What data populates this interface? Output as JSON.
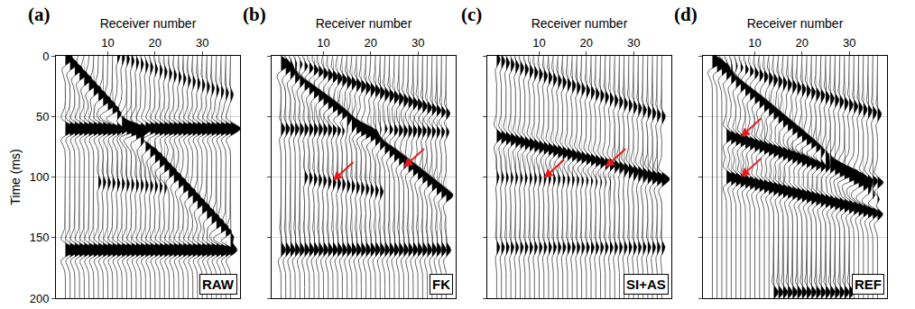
{
  "chart_data": [
    {
      "type": "wiggle",
      "panel": "(a)",
      "label": "RAW",
      "x_label": "Receiver number",
      "y_label": "Time (ms)",
      "x": [
        1,
        2,
        3,
        4,
        5,
        6,
        7,
        8,
        9,
        10,
        11,
        12,
        13,
        14,
        15,
        16,
        17,
        18,
        19,
        20,
        21,
        22,
        23,
        24,
        25,
        26,
        27,
        28,
        29,
        30,
        31,
        32,
        33,
        34,
        35,
        36
      ],
      "xlim": [
        -1,
        38
      ],
      "xticks": [
        10,
        20,
        30
      ],
      "ylim": [
        0,
        200
      ],
      "yticks": [
        0,
        50,
        100,
        150,
        200
      ],
      "tick_labels": true,
      "grid": true,
      "color": "#000000",
      "events": [
        {
          "x": [
            1,
            36
          ],
          "values": [
            2,
            150
          ],
          "amplitude": 1.0
        },
        {
          "x": [
            12,
            36
          ],
          "values": [
            0,
            32
          ],
          "amplitude": 0.35
        },
        {
          "x": [
            1,
            36
          ],
          "values": [
            60,
            60
          ],
          "amplitude": 1.3
        },
        {
          "x": [
            1,
            36
          ],
          "values": [
            160,
            160
          ],
          "amplitude": 1.3
        },
        {
          "x": [
            8,
            22
          ],
          "values": [
            104,
            108
          ],
          "amplitude": 0.35
        }
      ],
      "arrows": []
    },
    {
      "type": "wiggle",
      "panel": "(b)",
      "label": "FK",
      "x_label": "Receiver number",
      "x": [
        1,
        2,
        3,
        4,
        5,
        6,
        7,
        8,
        9,
        10,
        11,
        12,
        13,
        14,
        15,
        16,
        17,
        18,
        19,
        20,
        21,
        22,
        23,
        24,
        25,
        26,
        27,
        28,
        29,
        30,
        31,
        32,
        33,
        34,
        35,
        36
      ],
      "xlim": [
        -1,
        38
      ],
      "xticks": [
        10,
        20,
        30
      ],
      "ylim": [
        0,
        200
      ],
      "yticks": [
        0,
        50,
        100,
        150,
        200
      ],
      "tick_labels": "x",
      "grid": true,
      "color": "#000000",
      "events": [
        {
          "x": [
            1,
            36
          ],
          "values": [
            3,
            48
          ],
          "amplitude": 0.6
        },
        {
          "x": [
            1,
            36
          ],
          "values": [
            8,
            115
          ],
          "amplitude": 0.9
        },
        {
          "x": [
            1,
            36
          ],
          "values": [
            60,
            62
          ],
          "amplitude": 0.5
        },
        {
          "x": [
            6,
            22
          ],
          "values": [
            100,
            112
          ],
          "amplitude": 0.4
        },
        {
          "x": [
            1,
            36
          ],
          "values": [
            150,
            150
          ],
          "amplitude": 0.4
        },
        {
          "x": [
            1,
            36
          ],
          "values": [
            160,
            160
          ],
          "amplitude": 0.8
        }
      ],
      "arrows": [
        {
          "x": 12,
          "y": 103,
          "color": "#e41a1c"
        },
        {
          "x": 27,
          "y": 92,
          "color": "#e41a1c"
        }
      ]
    },
    {
      "type": "wiggle",
      "panel": "(c)",
      "label": "SI+AS",
      "x_label": "Receiver number",
      "x": [
        1,
        2,
        3,
        4,
        5,
        6,
        7,
        8,
        9,
        10,
        11,
        12,
        13,
        14,
        15,
        16,
        17,
        18,
        19,
        20,
        21,
        22,
        23,
        24,
        25,
        26,
        27,
        28,
        29,
        30,
        31,
        32,
        33,
        34,
        35,
        36
      ],
      "xlim": [
        -1,
        38
      ],
      "xticks": [
        10,
        20,
        30
      ],
      "ylim": [
        0,
        200
      ],
      "yticks": [
        0,
        50,
        100,
        150,
        200
      ],
      "tick_labels": "x",
      "grid": true,
      "color": "#000000",
      "events": [
        {
          "x": [
            1,
            36
          ],
          "values": [
            3,
            50
          ],
          "amplitude": 0.45
        },
        {
          "x": [
            1,
            36
          ],
          "values": [
            66,
            101
          ],
          "amplitude": 0.8
        },
        {
          "x": [
            1,
            36
          ],
          "values": [
            100,
            104
          ],
          "amplitude": 0.3
        },
        {
          "x": [
            1,
            36
          ],
          "values": [
            158,
            158
          ],
          "amplitude": 0.4
        }
      ],
      "arrows": [
        {
          "x": 11,
          "y": 101,
          "color": "#e41a1c"
        },
        {
          "x": 24,
          "y": 92,
          "color": "#e41a1c"
        }
      ]
    },
    {
      "type": "wiggle",
      "panel": "(d)",
      "label": "REF",
      "x_label": "Receiver number",
      "x": [
        1,
        2,
        3,
        4,
        5,
        6,
        7,
        8,
        9,
        10,
        11,
        12,
        13,
        14,
        15,
        16,
        17,
        18,
        19,
        20,
        21,
        22,
        23,
        24,
        25,
        26,
        27,
        28,
        29,
        30,
        31,
        32,
        33,
        34,
        35,
        36
      ],
      "xlim": [
        -1,
        38
      ],
      "xticks": [
        10,
        20,
        30
      ],
      "ylim": [
        0,
        200
      ],
      "yticks": [
        0,
        50,
        100,
        150,
        200
      ],
      "tick_labels": "x",
      "grid": true,
      "color": "#000000",
      "events": [
        {
          "x": [
            1,
            36
          ],
          "values": [
            3,
            48
          ],
          "amplitude": 0.5
        },
        {
          "x": [
            1,
            36
          ],
          "values": [
            5,
            118
          ],
          "amplitude": 0.9
        },
        {
          "x": [
            4,
            36
          ],
          "values": [
            66,
            105
          ],
          "amplitude": 1.0
        },
        {
          "x": [
            4,
            36
          ],
          "values": [
            100,
            130
          ],
          "amplitude": 1.0
        },
        {
          "x": [
            14,
            30
          ],
          "values": [
            195,
            195
          ],
          "amplitude": 0.6
        }
      ],
      "arrows": [
        {
          "x": 7,
          "y": 67,
          "color": "#e41a1c"
        },
        {
          "x": 7,
          "y": 100,
          "color": "#e41a1c"
        }
      ]
    }
  ]
}
